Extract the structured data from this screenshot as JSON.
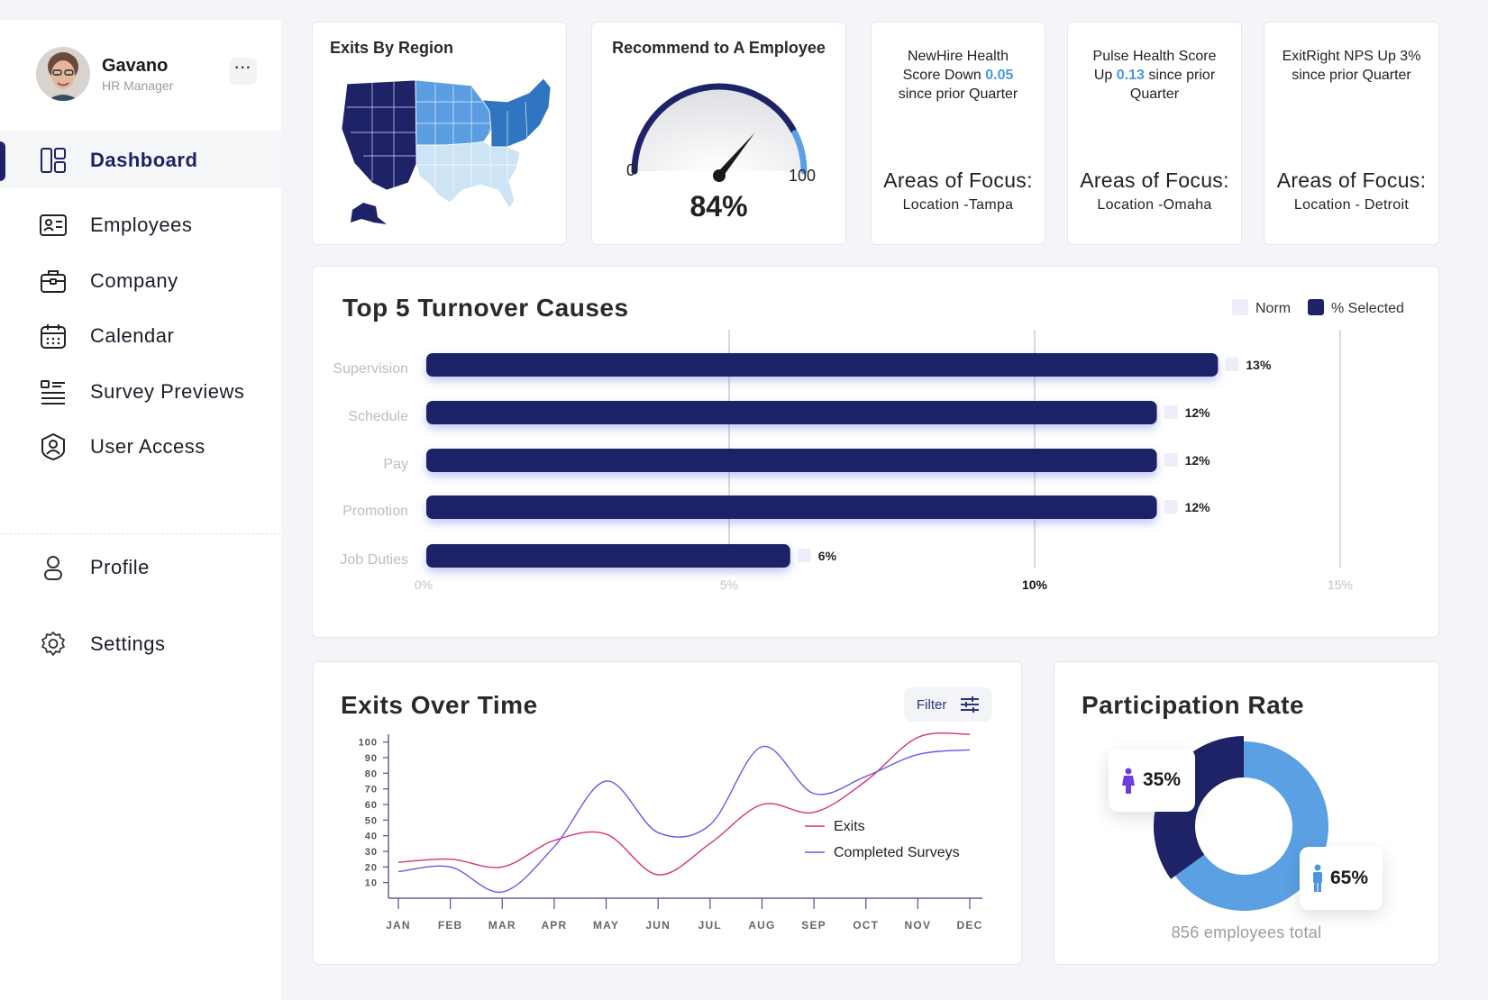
{
  "user": {
    "name": "Gavano",
    "role": "HR Manager",
    "more_label": "···"
  },
  "nav": {
    "items": [
      {
        "label": "Dashboard",
        "icon": "dashboard-icon",
        "active": true
      },
      {
        "label": "Employees",
        "icon": "id-card-icon"
      },
      {
        "label": "Company",
        "icon": "briefcase-icon"
      },
      {
        "label": "Calendar",
        "icon": "calendar-icon"
      },
      {
        "label": "Survey Previews",
        "icon": "list-icon"
      },
      {
        "label": "User Access",
        "icon": "user-shield-icon"
      }
    ],
    "bottom": [
      {
        "label": "Profile",
        "icon": "person-icon"
      },
      {
        "label": "Settings",
        "icon": "gear-icon"
      }
    ]
  },
  "exits_by_region": {
    "title": "Exits By Region"
  },
  "recommend": {
    "title": "Recommend to A Employee",
    "value_label": "84%",
    "value": 84,
    "min_label": "0",
    "max_label": "100"
  },
  "kpis": [
    {
      "line1": "NewHire Health",
      "line2_pre": "Score Down ",
      "line2_hl": "0.05",
      "line2_post": "",
      "line3": "since prior Quarter",
      "focus": "Areas of Focus:",
      "location": "Location -Tampa"
    },
    {
      "line1": "Pulse Health Score",
      "line2_pre": "Up ",
      "line2_hl": "0.13",
      "line2_post": " since prior",
      "line3": "Quarter",
      "focus": "Areas of Focus:",
      "location": "Location -Omaha"
    },
    {
      "line1": "ExitRight NPS Up 3%",
      "line2_pre": "since prior Quarter",
      "line2_hl": "",
      "line2_post": "",
      "line3": "",
      "focus": "Areas of Focus:",
      "location": "Location - Detroit"
    }
  ],
  "turnover": {
    "title": "Top 5 Turnover Causes",
    "legend": {
      "norm": "Norm",
      "selected": "% Selected"
    },
    "colors": {
      "bar": "#1e2367",
      "norm": "#eeeefa",
      "grid": "#b4b4bc"
    },
    "chart_data": {
      "type": "bar",
      "orientation": "horizontal",
      "categories": [
        "Supervision",
        "Schedule",
        "Pay",
        "Promotion",
        "Job Duties"
      ],
      "values": [
        13,
        12,
        12,
        12,
        6
      ],
      "value_labels": [
        "13%",
        "12%",
        "12%",
        "12%",
        "6%"
      ],
      "xlim": [
        0,
        15
      ],
      "x_ticks": [
        "0%",
        "5%",
        "10%",
        "15%"
      ]
    }
  },
  "exits_over_time": {
    "title": "Exits Over Time",
    "filter_label": "Filter",
    "colors": {
      "exits": "#d6307f",
      "surveys": "#6a58e8",
      "axis": "#6a5a9a"
    },
    "chart_data": {
      "type": "line",
      "x": [
        "JAN",
        "FEB",
        "MAR",
        "APR",
        "MAY",
        "JUN",
        "JUL",
        "AUG",
        "SEP",
        "OCT",
        "NOV",
        "DEC"
      ],
      "y_ticks": [
        "100",
        "90",
        "80",
        "70",
        "60",
        "50",
        "40",
        "30",
        "20",
        "10"
      ],
      "ylim": [
        0,
        105
      ],
      "series": [
        {
          "name": "Exits",
          "values": [
            23,
            25,
            20,
            37,
            41,
            15,
            35,
            60,
            55,
            75,
            103,
            105
          ]
        },
        {
          "name": "Completed Surveys",
          "values": [
            17,
            20,
            4,
            33,
            75,
            42,
            47,
            97,
            67,
            78,
            92,
            95
          ]
        }
      ]
    }
  },
  "participation": {
    "title": "Participation Rate",
    "total_label": "856 employees total",
    "colors": {
      "women": "#1e2367",
      "men": "#5aa0e3",
      "women_icon": "#6a3ee0",
      "men_icon": "#4a97e0"
    },
    "chart_data": {
      "type": "pie",
      "categories": [
        "Women",
        "Men"
      ],
      "values": [
        35,
        65
      ],
      "labels": [
        "35%",
        "65%"
      ]
    }
  }
}
